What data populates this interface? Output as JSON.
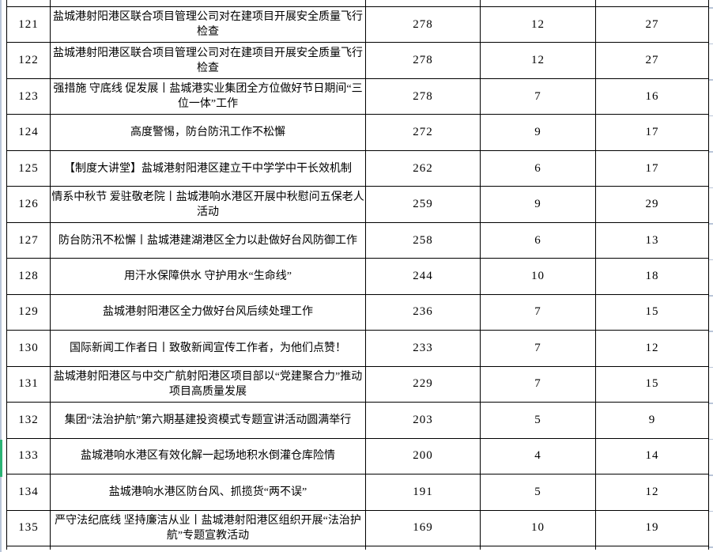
{
  "table": {
    "selected_row_no": "133",
    "rows": [
      {
        "no": "121",
        "title": "盐城港射阳港区联合项目管理公司对在建项目开展安全质量飞行检查",
        "v1": "278",
        "v2": "12",
        "v3": "27"
      },
      {
        "no": "122",
        "title": "盐城港射阳港区联合项目管理公司对在建项目开展安全质量飞行检查",
        "v1": "278",
        "v2": "12",
        "v3": "27"
      },
      {
        "no": "123",
        "title": "强措施 守底线 促发展丨盐城港实业集团全方位做好节日期间“三位一体”工作",
        "v1": "278",
        "v2": "7",
        "v3": "16"
      },
      {
        "no": "124",
        "title": "高度警惕，防台防汛工作不松懈",
        "v1": "272",
        "v2": "9",
        "v3": "17"
      },
      {
        "no": "125",
        "title": "【制度大讲堂】盐城港射阳港区建立干中学学中干长效机制",
        "v1": "262",
        "v2": "6",
        "v3": "17"
      },
      {
        "no": "126",
        "title": "情系中秋节 爱驻敬老院丨盐城港响水港区开展中秋慰问五保老人活动",
        "v1": "259",
        "v2": "9",
        "v3": "29"
      },
      {
        "no": "127",
        "title": "防台防汛不松懈丨盐城港建湖港区全力以赴做好台风防御工作",
        "v1": "258",
        "v2": "6",
        "v3": "13"
      },
      {
        "no": "128",
        "title": "用汗水保障供水 守护用水“生命线”",
        "v1": "244",
        "v2": "10",
        "v3": "18"
      },
      {
        "no": "129",
        "title": "盐城港射阳港区全力做好台风后续处理工作",
        "v1": "236",
        "v2": "7",
        "v3": "15"
      },
      {
        "no": "130",
        "title": "国际新闻工作者日丨致敬新闻宣传工作者，为他们点赞！",
        "v1": "233",
        "v2": "7",
        "v3": "12"
      },
      {
        "no": "131",
        "title": "盐城港射阳港区与中交广航射阳港区项目部以“党建聚合力”推动项目高质量发展",
        "v1": "229",
        "v2": "7",
        "v3": "15"
      },
      {
        "no": "132",
        "title": "集团“法治护航”第六期基建投资模式专题宣讲活动圆满举行",
        "v1": "203",
        "v2": "5",
        "v3": "9"
      },
      {
        "no": "133",
        "title": "盐城港响水港区有效化解一起场地积水倒灌仓库险情",
        "v1": "200",
        "v2": "4",
        "v3": "14"
      },
      {
        "no": "134",
        "title": "盐城港响水港区防台风、抓揽货“两不误”",
        "v1": "191",
        "v2": "5",
        "v3": "12"
      },
      {
        "no": "135",
        "title": "严守法纪底线 坚持廉洁从业丨盐城港射阳港区组织开展“法治护航”专题宣教活动",
        "v1": "169",
        "v2": "10",
        "v3": "19"
      }
    ]
  },
  "colors": {
    "border": "#000000",
    "text": "#000000",
    "gridline": "#b9c5d8",
    "selection_green": "#2bb375",
    "background": "#ffffff"
  },
  "layout_meta": {
    "first_visible_row": "121",
    "last_visible_row": "135"
  }
}
